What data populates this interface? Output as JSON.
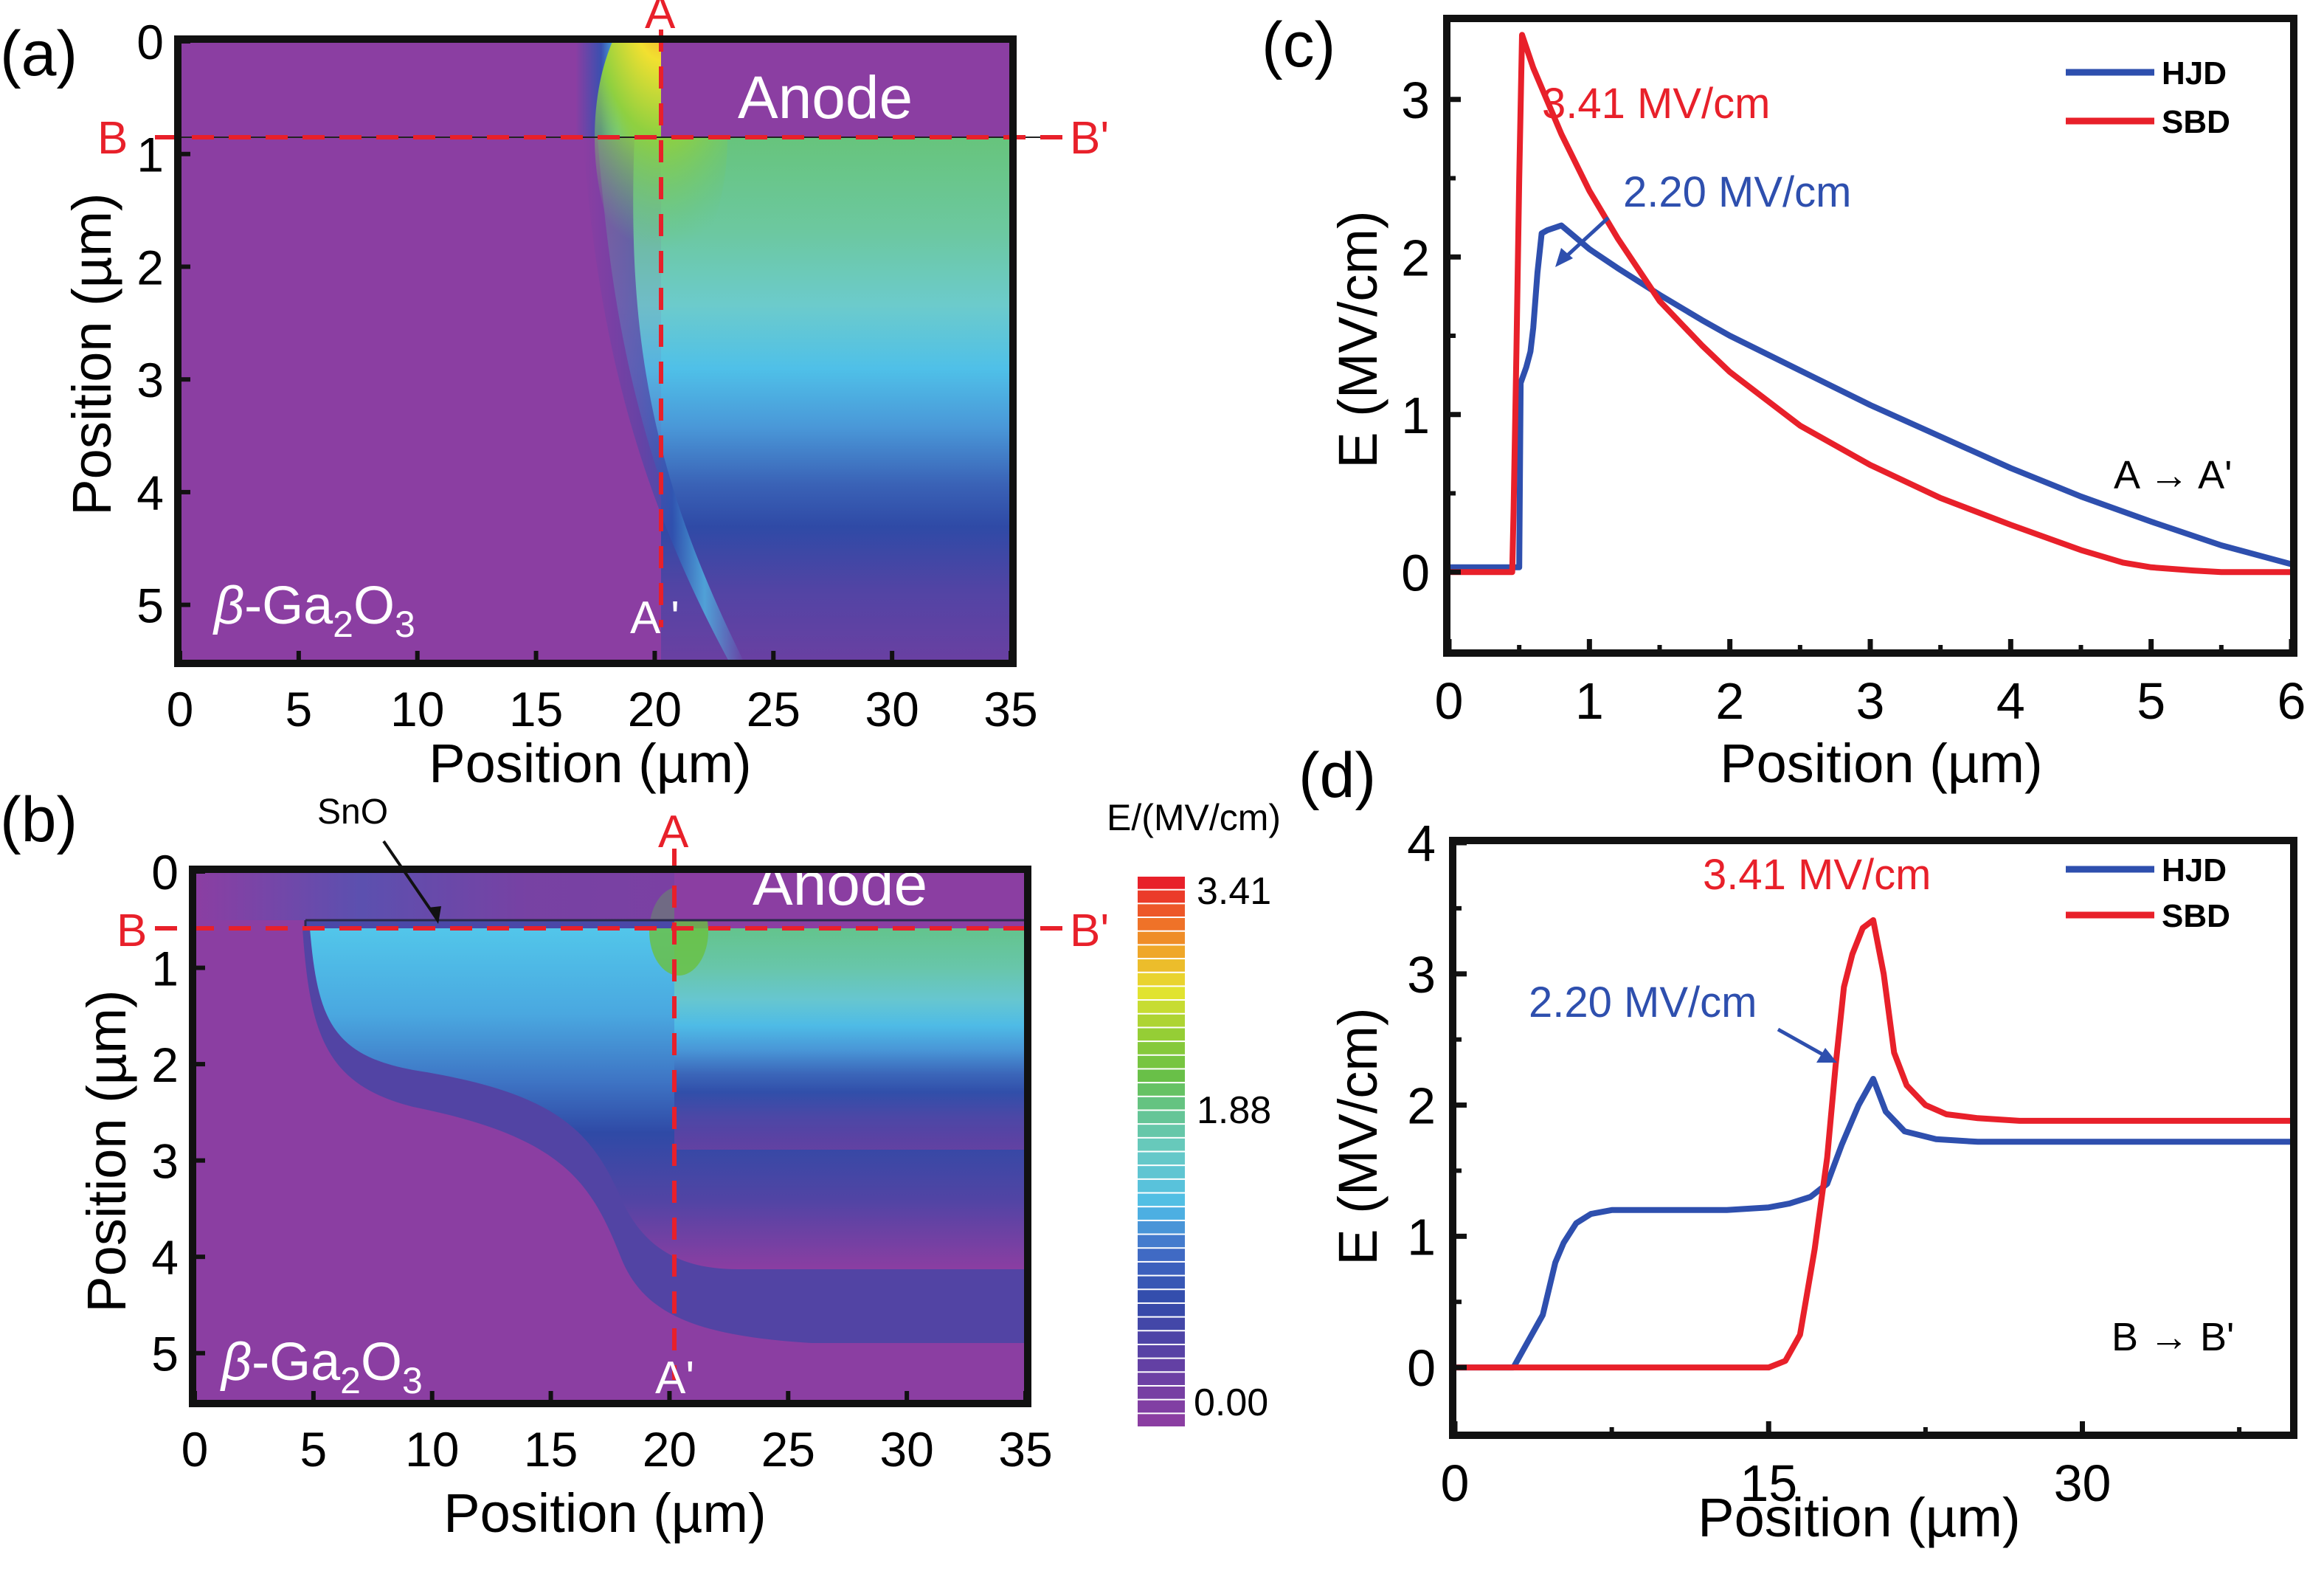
{
  "panel_labels": {
    "a": "(a)",
    "b": "(b)",
    "c": "(c)",
    "d": "(d)"
  },
  "colors": {
    "hjd": "#2e4fae",
    "sbd": "#e8202a",
    "cutline": "#e8202a",
    "background_purple": "#8b3ea2",
    "axis": "#111111"
  },
  "chart_data": [
    {
      "id": "a",
      "type": "heatmap",
      "title": "",
      "xlabel": "Position (µm)",
      "ylabel": "Position (µm)",
      "xlim": [
        0,
        35
      ],
      "ylim": [
        0,
        5.5
      ],
      "y_inverted": true,
      "xticks": [
        "0",
        "5",
        "10",
        "15",
        "20",
        "25",
        "30",
        "35"
      ],
      "yticks": [
        "0",
        "1",
        "2",
        "3",
        "4",
        "5"
      ],
      "annotations": {
        "region_top": "Anode",
        "region_bottom": "β-Ga2O3",
        "cut_A_start": "A",
        "cut_A_end": "A '",
        "cut_B_start": "B",
        "cut_B_end": "B'"
      },
      "cut_A_x": 20,
      "cut_B_y": 0.5,
      "anode_x_range": [
        20,
        35
      ],
      "anode_y_range": [
        0,
        0.5
      ],
      "peak_field_location": [
        20,
        0.5
      ]
    },
    {
      "id": "b",
      "type": "heatmap",
      "title": "",
      "xlabel": "Position (µm)",
      "ylabel": "Position (µm)",
      "xlim": [
        0,
        35
      ],
      "ylim": [
        0,
        5.5
      ],
      "y_inverted": true,
      "xticks": [
        "0",
        "5",
        "10",
        "15",
        "20",
        "25",
        "30",
        "35"
      ],
      "yticks": [
        "0",
        "1",
        "2",
        "3",
        "4",
        "5"
      ],
      "annotations": {
        "region_top": "Anode",
        "region_bottom": "β-Ga2O3",
        "layer_label": "SnO",
        "cut_A_start": "A",
        "cut_A_end": "A'",
        "cut_B_start": "B",
        "cut_B_end": "B'"
      },
      "cut_A_x": 20,
      "cut_B_y": 0.6,
      "sno_x_range": [
        5,
        20
      ],
      "colorbar": {
        "title": "E/(MV/cm)",
        "ticks": [
          "3.41",
          "1.88",
          "0.00"
        ],
        "min": 0.0,
        "max": 3.41,
        "levels": 40
      }
    },
    {
      "id": "c",
      "type": "line",
      "title": "",
      "xlabel": "Position (µm)",
      "ylabel": "E (MV/cm)",
      "xlim": [
        0,
        6
      ],
      "ylim": [
        -0.5,
        3.5
      ],
      "xticks": [
        "0",
        "1",
        "2",
        "3",
        "4",
        "5",
        "6"
      ],
      "yticks": [
        "0",
        "1",
        "2",
        "3"
      ],
      "legend": {
        "position": "top-right",
        "entries": [
          "HJD",
          "SBD"
        ]
      },
      "annotations": {
        "sbd_peak": "3.41 MV/cm",
        "hjd_peak": "2.20 MV/cm",
        "cut": "A → A'"
      },
      "series": [
        {
          "name": "HJD",
          "x": [
            0,
            0.45,
            0.5,
            0.51,
            0.55,
            0.58,
            0.6,
            0.63,
            0.66,
            0.7,
            0.8,
            1.0,
            1.2,
            1.5,
            1.8,
            2.0,
            2.5,
            3.0,
            3.5,
            4.0,
            4.5,
            5.0,
            5.5,
            6.0
          ],
          "y": [
            0.03,
            0.03,
            0.03,
            1.2,
            1.3,
            1.4,
            1.55,
            1.9,
            2.15,
            2.17,
            2.2,
            2.05,
            1.93,
            1.76,
            1.6,
            1.5,
            1.28,
            1.06,
            0.86,
            0.66,
            0.48,
            0.32,
            0.17,
            0.05
          ]
        },
        {
          "name": "SBD",
          "x": [
            0,
            0.4,
            0.45,
            0.46,
            0.48,
            0.5,
            0.52,
            0.6,
            0.8,
            1.0,
            1.2,
            1.5,
            1.8,
            2.0,
            2.5,
            3.0,
            3.5,
            4.0,
            4.5,
            4.8,
            5.0,
            5.3,
            5.5,
            6.0
          ],
          "y": [
            0.0,
            0.0,
            0.0,
            0.4,
            1.4,
            2.5,
            3.41,
            3.2,
            2.78,
            2.42,
            2.12,
            1.72,
            1.44,
            1.27,
            0.93,
            0.68,
            0.47,
            0.3,
            0.14,
            0.06,
            0.03,
            0.01,
            0.0,
            0.0
          ]
        }
      ]
    },
    {
      "id": "d",
      "type": "line",
      "title": "",
      "xlabel": "Position (µm)",
      "ylabel": "E (MV/cm)",
      "xlim": [
        0,
        40
      ],
      "ylim": [
        -0.5,
        4
      ],
      "xticks": [
        "0",
        "15",
        "30"
      ],
      "yticks": [
        "0",
        "1",
        "2",
        "3",
        "4"
      ],
      "legend": {
        "position": "top-right",
        "entries": [
          "HJD",
          "SBD"
        ]
      },
      "annotations": {
        "sbd_peak": "3.41 MV/cm",
        "hjd_peak": "2.20 MV/cm",
        "cut": "B → B'"
      },
      "series": [
        {
          "name": "HJD",
          "x": [
            0,
            2.8,
            3.5,
            4.2,
            4.8,
            5.2,
            5.8,
            6.5,
            7.5,
            10,
            13,
            15,
            16,
            17,
            17.8,
            18.5,
            19.3,
            20.0,
            20.6,
            21.5,
            23,
            25,
            28,
            32,
            36,
            40
          ],
          "y": [
            0,
            0.0,
            0.2,
            0.4,
            0.8,
            0.95,
            1.1,
            1.17,
            1.2,
            1.2,
            1.2,
            1.22,
            1.25,
            1.3,
            1.4,
            1.7,
            2.0,
            2.2,
            1.95,
            1.8,
            1.74,
            1.72,
            1.72,
            1.72,
            1.72,
            1.72
          ]
        },
        {
          "name": "SBD",
          "x": [
            0,
            5,
            10,
            15,
            15.8,
            16.5,
            17.2,
            17.8,
            18.2,
            18.6,
            19.0,
            19.5,
            20.0,
            20.5,
            21.0,
            21.6,
            22.5,
            23.5,
            25,
            27,
            30,
            35,
            40
          ],
          "y": [
            0.0,
            0.0,
            0.0,
            0.0,
            0.05,
            0.25,
            0.9,
            1.6,
            2.3,
            2.9,
            3.15,
            3.35,
            3.41,
            3.0,
            2.4,
            2.15,
            2.0,
            1.93,
            1.9,
            1.88,
            1.88,
            1.88,
            1.88
          ]
        }
      ]
    }
  ]
}
